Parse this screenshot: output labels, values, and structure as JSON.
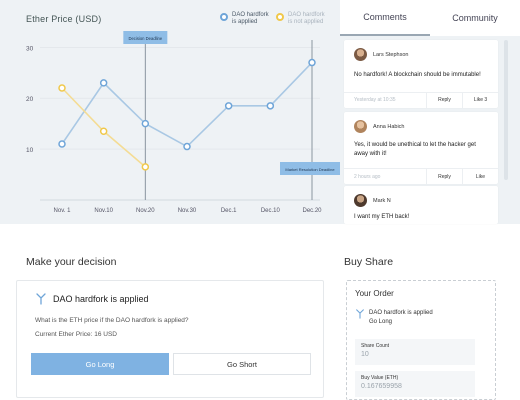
{
  "chart_panel": {
    "title": "Ether Price (USD)",
    "legend": [
      {
        "label_line1": "DAO hardfork",
        "label_line2": "is applied",
        "color": "#6fa5d8"
      },
      {
        "label_line1": "DAO hardfork",
        "label_line2": "is not applied",
        "color": "#f0c84a"
      }
    ],
    "markers": [
      "Decision Deadline",
      "Market Resolution Deadline"
    ]
  },
  "chart_data": {
    "type": "line",
    "x": [
      "Nov. 1",
      "Nov.10",
      "Nov.20",
      "Nov.30",
      "Dec.1",
      "Dec.10",
      "Dec.20"
    ],
    "ylim": [
      0,
      33
    ],
    "yticks": [
      10,
      20,
      30
    ],
    "grid": true,
    "legend_placement": "top-right",
    "series": [
      {
        "name": "DAO hardfork is applied",
        "color": "#a9c8e4",
        "point_color": "#6fa5d8",
        "values": [
          11,
          23,
          15,
          10.5,
          18.5,
          18.5,
          27
        ]
      },
      {
        "name": "DAO hardfork is not applied",
        "color": "#f4dc94",
        "point_color": "#f0c84a",
        "values": [
          22,
          13.5,
          6.5,
          null,
          null,
          null,
          null
        ]
      }
    ]
  },
  "comments_panel": {
    "tabs": [
      "Comments",
      "Community"
    ],
    "comments": [
      {
        "name": "Lars Stephson",
        "text": "No hardfork! A blockchain should be immutable!",
        "time": "Yesterday at 10:35",
        "reply_label": "Reply",
        "like_label": "Like 3"
      },
      {
        "name": "Anna Habich",
        "text": "Yes, it would be unethical to let the hacker get away with it!",
        "time": "2 hours ago",
        "reply_label": "Reply",
        "like_label": "Like"
      },
      {
        "name": "Mark N",
        "text": "I want my ETH back!"
      }
    ]
  },
  "decision": {
    "section_title": "Make your decision",
    "card_title": "DAO hardfork is applied",
    "question": "What is the ETH price if the DAO hardfork is applied?",
    "current_price": "Current Ether Price: 16 USD",
    "go_long": "Go Long",
    "go_short": "Go Short"
  },
  "buy_share": {
    "section_title": "Buy Share",
    "order_title": "Your Order",
    "selection_line1": "DAO hardfork is applied",
    "selection_line2": "Go Long",
    "share_count_label": "Share Count",
    "share_count_placeholder": "10",
    "buy_value_label": "Buy Value (ETH)",
    "buy_value_placeholder": "0.167659958"
  }
}
